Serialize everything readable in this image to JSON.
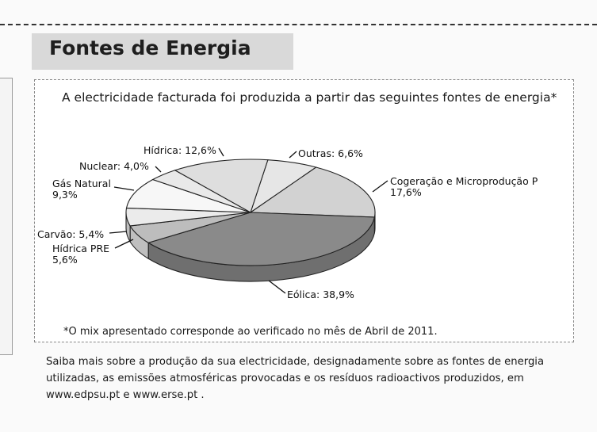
{
  "section": {
    "title": "Fontes de Energia"
  },
  "chart_data": {
    "type": "pie",
    "title": "A electricidade facturada foi produzida a partir das seguintes fontes de energia*",
    "slices": [
      {
        "label": "Outras: 6,6%",
        "value": 6.6,
        "color": "#e6e6e6"
      },
      {
        "label": "Cogeração e Microprodução P 17,6%",
        "label_lines": [
          "Cogeração e Microprodução P",
          "17,6%"
        ],
        "value": 17.6,
        "color": "#d2d2d2"
      },
      {
        "label": "Eólica: 38,9%",
        "value": 38.9,
        "color": "#8a8a8a"
      },
      {
        "label": "Hídrica PRE 5,6%",
        "label_lines": [
          "Hídrica PRE",
          "5,6%"
        ],
        "value": 5.6,
        "color": "#bdbdbd"
      },
      {
        "label": "Carvão: 5,4%",
        "value": 5.4,
        "color": "#ebebeb"
      },
      {
        "label": "Gás Natural 9,3%",
        "label_lines": [
          "Gás Natural",
          "9,3%"
        ],
        "value": 9.3,
        "color": "#f7f7f7"
      },
      {
        "label": "Nuclear: 4,0%",
        "value": 4.0,
        "color": "#e9e9e9"
      },
      {
        "label": "Hídrica: 12,6%",
        "value": 12.6,
        "color": "#dedede"
      }
    ],
    "footnote": "*O mix apresentado corresponde ao verificado no mês de Abril de 2011."
  },
  "info": {
    "lines": [
      "Saiba mais sobre a produção da sua electricidade, designadamente sobre as fontes de energia",
      "utilizadas, as emissões atmosféricas provocadas e os resíduos radioactivos produzidos, em",
      "www.edpsu.pt e www.erse.pt ."
    ]
  }
}
